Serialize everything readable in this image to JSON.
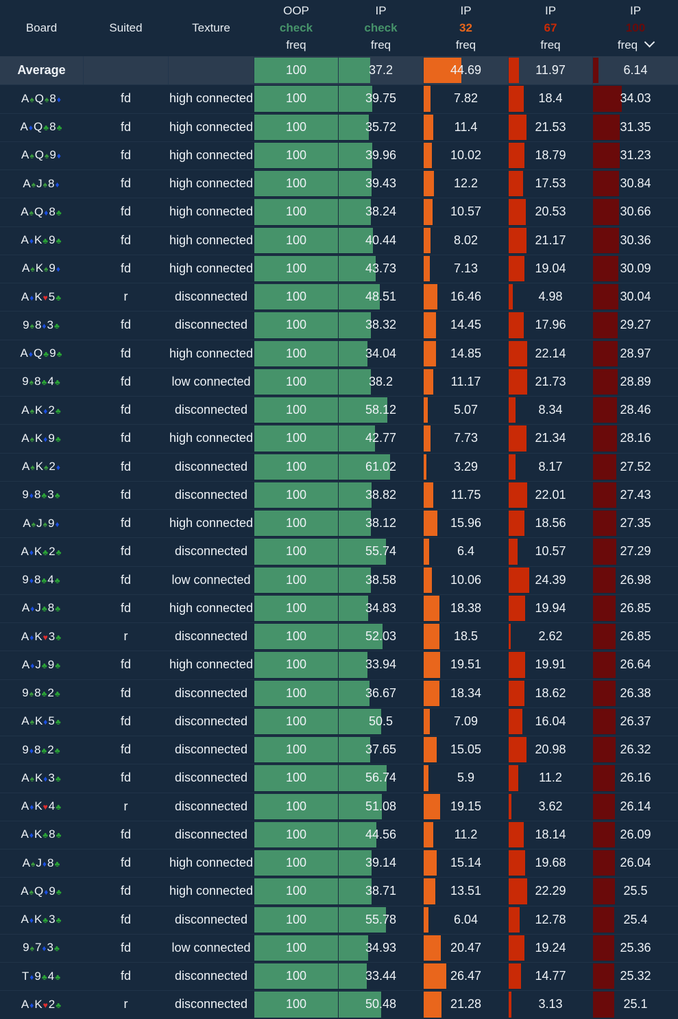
{
  "header": {
    "board": "Board",
    "suited": "Suited",
    "texture": "Texture",
    "oop_check": {
      "l1": "OOP",
      "l2": "check",
      "l3": "freq"
    },
    "ip_check": {
      "l1": "IP",
      "l2": "check",
      "l3": "freq"
    },
    "ip_32": {
      "l1": "IP",
      "l2": "32",
      "l3": "freq"
    },
    "ip_67": {
      "l1": "IP",
      "l2": "67",
      "l3": "freq"
    },
    "ip_100": {
      "l1": "IP",
      "l2": "100",
      "l3": "freq"
    }
  },
  "colors": {
    "check": "#46936a",
    "bet32": "#e9661c",
    "bet67": "#c92a06",
    "bet100": "#6a0a0a",
    "spade": "#3a9a3e",
    "club": "#2aa536",
    "diamond": "#1a4fe0",
    "heart": "#e02f2f"
  },
  "average": {
    "label": "Average",
    "oop": "100",
    "ip_check": "37.2",
    "b32": "44.69",
    "b67": "11.97",
    "b100": "6.14"
  },
  "rows": [
    {
      "board": [
        [
          "A",
          "s"
        ],
        [
          "Q",
          "s"
        ],
        [
          "8",
          "d"
        ]
      ],
      "suited": "fd",
      "texture": "high connected",
      "oop": "100",
      "check": "39.75",
      "b32": "7.82",
      "b67": "18.4",
      "b100": "34.03"
    },
    {
      "board": [
        [
          "A",
          "d"
        ],
        [
          "Q",
          "c"
        ],
        [
          "8",
          "c"
        ]
      ],
      "suited": "fd",
      "texture": "high connected",
      "oop": "100",
      "check": "35.72",
      "b32": "11.4",
      "b67": "21.53",
      "b100": "31.35"
    },
    {
      "board": [
        [
          "A",
          "s"
        ],
        [
          "Q",
          "s"
        ],
        [
          "9",
          "d"
        ]
      ],
      "suited": "fd",
      "texture": "high connected",
      "oop": "100",
      "check": "39.96",
      "b32": "10.02",
      "b67": "18.79",
      "b100": "31.23"
    },
    {
      "board": [
        [
          "A",
          "s"
        ],
        [
          "J",
          "s"
        ],
        [
          "8",
          "d"
        ]
      ],
      "suited": "fd",
      "texture": "high connected",
      "oop": "100",
      "check": "39.43",
      "b32": "12.2",
      "b67": "17.53",
      "b100": "30.84"
    },
    {
      "board": [
        [
          "A",
          "s"
        ],
        [
          "Q",
          "d"
        ],
        [
          "8",
          "c"
        ]
      ],
      "suited": "fd",
      "texture": "high connected",
      "oop": "100",
      "check": "38.24",
      "b32": "10.57",
      "b67": "20.53",
      "b100": "30.66"
    },
    {
      "board": [
        [
          "A",
          "d"
        ],
        [
          "K",
          "c"
        ],
        [
          "9",
          "c"
        ]
      ],
      "suited": "fd",
      "texture": "high connected",
      "oop": "100",
      "check": "40.44",
      "b32": "8.02",
      "b67": "21.17",
      "b100": "30.36"
    },
    {
      "board": [
        [
          "A",
          "s"
        ],
        [
          "K",
          "s"
        ],
        [
          "9",
          "d"
        ]
      ],
      "suited": "fd",
      "texture": "high connected",
      "oop": "100",
      "check": "43.73",
      "b32": "7.13",
      "b67": "19.04",
      "b100": "30.09"
    },
    {
      "board": [
        [
          "A",
          "d"
        ],
        [
          "K",
          "h"
        ],
        [
          "5",
          "c"
        ]
      ],
      "suited": "r",
      "texture": "disconnected",
      "oop": "100",
      "check": "48.51",
      "b32": "16.46",
      "b67": "4.98",
      "b100": "30.04"
    },
    {
      "board": [
        [
          "9",
          "s"
        ],
        [
          "8",
          "d"
        ],
        [
          "3",
          "c"
        ]
      ],
      "suited": "fd",
      "texture": "disconnected",
      "oop": "100",
      "check": "38.32",
      "b32": "14.45",
      "b67": "17.96",
      "b100": "29.27"
    },
    {
      "board": [
        [
          "A",
          "d"
        ],
        [
          "Q",
          "c"
        ],
        [
          "9",
          "c"
        ]
      ],
      "suited": "fd",
      "texture": "high connected",
      "oop": "100",
      "check": "34.04",
      "b32": "14.85",
      "b67": "22.14",
      "b100": "28.97"
    },
    {
      "board": [
        [
          "9",
          "s"
        ],
        [
          "8",
          "c"
        ],
        [
          "4",
          "c"
        ]
      ],
      "suited": "fd",
      "texture": "low connected",
      "oop": "100",
      "check": "38.2",
      "b32": "11.17",
      "b67": "21.73",
      "b100": "28.89"
    },
    {
      "board": [
        [
          "A",
          "s"
        ],
        [
          "K",
          "d"
        ],
        [
          "2",
          "c"
        ]
      ],
      "suited": "fd",
      "texture": "disconnected",
      "oop": "100",
      "check": "58.12",
      "b32": "5.07",
      "b67": "8.34",
      "b100": "28.46"
    },
    {
      "board": [
        [
          "A",
          "s"
        ],
        [
          "K",
          "d"
        ],
        [
          "9",
          "c"
        ]
      ],
      "suited": "fd",
      "texture": "high connected",
      "oop": "100",
      "check": "42.77",
      "b32": "7.73",
      "b67": "21.34",
      "b100": "28.16"
    },
    {
      "board": [
        [
          "A",
          "s"
        ],
        [
          "K",
          "s"
        ],
        [
          "2",
          "d"
        ]
      ],
      "suited": "fd",
      "texture": "disconnected",
      "oop": "100",
      "check": "61.02",
      "b32": "3.29",
      "b67": "8.17",
      "b100": "27.52"
    },
    {
      "board": [
        [
          "9",
          "d"
        ],
        [
          "8",
          "c"
        ],
        [
          "3",
          "c"
        ]
      ],
      "suited": "fd",
      "texture": "disconnected",
      "oop": "100",
      "check": "38.82",
      "b32": "11.75",
      "b67": "22.01",
      "b100": "27.43"
    },
    {
      "board": [
        [
          "A",
          "s"
        ],
        [
          "J",
          "s"
        ],
        [
          "9",
          "d"
        ]
      ],
      "suited": "fd",
      "texture": "high connected",
      "oop": "100",
      "check": "38.12",
      "b32": "15.96",
      "b67": "18.56",
      "b100": "27.35"
    },
    {
      "board": [
        [
          "A",
          "d"
        ],
        [
          "K",
          "c"
        ],
        [
          "2",
          "c"
        ]
      ],
      "suited": "fd",
      "texture": "disconnected",
      "oop": "100",
      "check": "55.74",
      "b32": "6.4",
      "b67": "10.57",
      "b100": "27.29"
    },
    {
      "board": [
        [
          "9",
          "d"
        ],
        [
          "8",
          "c"
        ],
        [
          "4",
          "c"
        ]
      ],
      "suited": "fd",
      "texture": "low connected",
      "oop": "100",
      "check": "38.58",
      "b32": "10.06",
      "b67": "24.39",
      "b100": "26.98"
    },
    {
      "board": [
        [
          "A",
          "d"
        ],
        [
          "J",
          "c"
        ],
        [
          "8",
          "c"
        ]
      ],
      "suited": "fd",
      "texture": "high connected",
      "oop": "100",
      "check": "34.83",
      "b32": "18.38",
      "b67": "19.94",
      "b100": "26.85"
    },
    {
      "board": [
        [
          "A",
          "d"
        ],
        [
          "K",
          "h"
        ],
        [
          "3",
          "c"
        ]
      ],
      "suited": "r",
      "texture": "disconnected",
      "oop": "100",
      "check": "52.03",
      "b32": "18.5",
      "b67": "2.62",
      "b100": "26.85"
    },
    {
      "board": [
        [
          "A",
          "d"
        ],
        [
          "J",
          "c"
        ],
        [
          "9",
          "c"
        ]
      ],
      "suited": "fd",
      "texture": "high connected",
      "oop": "100",
      "check": "33.94",
      "b32": "19.51",
      "b67": "19.91",
      "b100": "26.64"
    },
    {
      "board": [
        [
          "9",
          "s"
        ],
        [
          "8",
          "c"
        ],
        [
          "2",
          "c"
        ]
      ],
      "suited": "fd",
      "texture": "disconnected",
      "oop": "100",
      "check": "36.67",
      "b32": "18.34",
      "b67": "18.62",
      "b100": "26.38"
    },
    {
      "board": [
        [
          "A",
          "s"
        ],
        [
          "K",
          "d"
        ],
        [
          "5",
          "c"
        ]
      ],
      "suited": "fd",
      "texture": "disconnected",
      "oop": "100",
      "check": "50.5",
      "b32": "7.09",
      "b67": "16.04",
      "b100": "26.37"
    },
    {
      "board": [
        [
          "9",
          "d"
        ],
        [
          "8",
          "c"
        ],
        [
          "2",
          "c"
        ]
      ],
      "suited": "fd",
      "texture": "disconnected",
      "oop": "100",
      "check": "37.65",
      "b32": "15.05",
      "b67": "20.98",
      "b100": "26.32"
    },
    {
      "board": [
        [
          "A",
          "s"
        ],
        [
          "K",
          "d"
        ],
        [
          "3",
          "c"
        ]
      ],
      "suited": "fd",
      "texture": "disconnected",
      "oop": "100",
      "check": "56.74",
      "b32": "5.9",
      "b67": "11.2",
      "b100": "26.16"
    },
    {
      "board": [
        [
          "A",
          "d"
        ],
        [
          "K",
          "h"
        ],
        [
          "4",
          "c"
        ]
      ],
      "suited": "r",
      "texture": "disconnected",
      "oop": "100",
      "check": "51.08",
      "b32": "19.15",
      "b67": "3.62",
      "b100": "26.14"
    },
    {
      "board": [
        [
          "A",
          "d"
        ],
        [
          "K",
          "c"
        ],
        [
          "8",
          "c"
        ]
      ],
      "suited": "fd",
      "texture": "disconnected",
      "oop": "100",
      "check": "44.56",
      "b32": "11.2",
      "b67": "18.14",
      "b100": "26.09"
    },
    {
      "board": [
        [
          "A",
          "s"
        ],
        [
          "J",
          "d"
        ],
        [
          "8",
          "c"
        ]
      ],
      "suited": "fd",
      "texture": "high connected",
      "oop": "100",
      "check": "39.14",
      "b32": "15.14",
      "b67": "19.68",
      "b100": "26.04"
    },
    {
      "board": [
        [
          "A",
          "s"
        ],
        [
          "Q",
          "d"
        ],
        [
          "9",
          "c"
        ]
      ],
      "suited": "fd",
      "texture": "high connected",
      "oop": "100",
      "check": "38.71",
      "b32": "13.51",
      "b67": "22.29",
      "b100": "25.5"
    },
    {
      "board": [
        [
          "A",
          "d"
        ],
        [
          "K",
          "c"
        ],
        [
          "3",
          "c"
        ]
      ],
      "suited": "fd",
      "texture": "disconnected",
      "oop": "100",
      "check": "55.78",
      "b32": "6.04",
      "b67": "12.78",
      "b100": "25.4"
    },
    {
      "board": [
        [
          "9",
          "s"
        ],
        [
          "7",
          "d"
        ],
        [
          "3",
          "c"
        ]
      ],
      "suited": "fd",
      "texture": "low connected",
      "oop": "100",
      "check": "34.93",
      "b32": "20.47",
      "b67": "19.24",
      "b100": "25.36"
    },
    {
      "board": [
        [
          "T",
          "d"
        ],
        [
          "9",
          "c"
        ],
        [
          "4",
          "c"
        ]
      ],
      "suited": "fd",
      "texture": "disconnected",
      "oop": "100",
      "check": "33.44",
      "b32": "26.47",
      "b67": "14.77",
      "b100": "25.32"
    },
    {
      "board": [
        [
          "A",
          "d"
        ],
        [
          "K",
          "h"
        ],
        [
          "2",
          "c"
        ]
      ],
      "suited": "r",
      "texture": "disconnected",
      "oop": "100",
      "check": "50.48",
      "b32": "21.28",
      "b67": "3.13",
      "b100": "25.1"
    }
  ]
}
